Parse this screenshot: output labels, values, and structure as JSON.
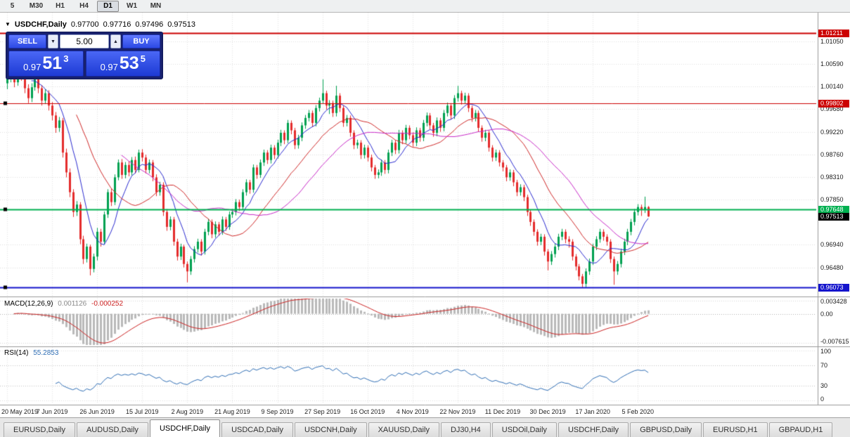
{
  "toolbar": {
    "timeframes": [
      "5",
      "M30",
      "H1",
      "H4",
      "D1",
      "W1",
      "MN"
    ],
    "active": "D1"
  },
  "chart": {
    "symbol_title": "USDCHF,Daily",
    "open": "0.97700",
    "high": "0.97716",
    "low": "0.97496",
    "close": "0.97513"
  },
  "trade": {
    "sell_label": "SELL",
    "buy_label": "BUY",
    "volume": "5.00",
    "sell_price_main": "0.97",
    "sell_price_pips": "51",
    "sell_price_frac": "3",
    "buy_price_main": "0.97",
    "buy_price_pips": "53",
    "buy_price_frac": "5"
  },
  "macd": {
    "name": "MACD(12,26,9)",
    "value": "0.001126",
    "signal_value": "-0.000252",
    "fast": 12,
    "slow": 26,
    "signal": 9,
    "ylim": [
      -0.007615,
      0.003428
    ],
    "axis_labels": [
      "0.003428",
      "0.00",
      "-0.007615"
    ],
    "hist_color": "#b9b9b9",
    "signal_color": "#cc2222"
  },
  "rsi": {
    "name": "RSI(14)",
    "value": "55.2853",
    "period": 14,
    "levels": [
      70,
      30
    ],
    "axis_labels": [
      "100",
      "70",
      "30",
      "0"
    ],
    "line_color": "#2f6eb5"
  },
  "tabs": {
    "items": [
      "EURUSD,Daily",
      "AUDUSD,Daily",
      "USDCHF,Daily",
      "USDCAD,Daily",
      "USDCNH,Daily",
      "XAUUSD,Daily",
      "DJ30,H4",
      "USDOil,Daily",
      "USDCHF,Daily",
      "GBPUSD,Daily",
      "EURUSD,H1",
      "GBPAUD,H1"
    ],
    "active_index": 2
  },
  "chart_data": {
    "type": "candlestick",
    "title": "USDCHF,Daily",
    "symbol": "USDCHF",
    "timeframe": "Daily",
    "price_scale": 10000,
    "ylim": [
      0.9595,
      1.014
    ],
    "yticks": [
      1.0105,
      1.0059,
      1.0014,
      0.9968,
      0.9922,
      0.9876,
      0.9831,
      0.9785,
      0.9694,
      0.9648
    ],
    "x_start": 10,
    "x_step": 4.93,
    "x_label_dates": [
      {
        "i": 0,
        "t": "20 May 2019"
      },
      {
        "i": 13,
        "t": "7 Jun 2019"
      },
      {
        "i": 26,
        "t": "26 Jun 2019"
      },
      {
        "i": 39,
        "t": "15 Jul 2019"
      },
      {
        "i": 52,
        "t": "2 Aug 2019"
      },
      {
        "i": 65,
        "t": "21 Aug 2019"
      },
      {
        "i": 78,
        "t": "9 Sep 2019"
      },
      {
        "i": 91,
        "t": "27 Sep 2019"
      },
      {
        "i": 104,
        "t": "16 Oct 2019"
      },
      {
        "i": 117,
        "t": "4 Nov 2019"
      },
      {
        "i": 130,
        "t": "22 Nov 2019"
      },
      {
        "i": 143,
        "t": "11 Dec 2019"
      },
      {
        "i": 156,
        "t": "30 Dec 2019"
      },
      {
        "i": 169,
        "t": "17 Jan 2020"
      },
      {
        "i": 182,
        "t": "5 Feb 2020"
      }
    ],
    "up_color": "#00a050",
    "down_color": "#e42b2b",
    "moving_averages": [
      {
        "period": 8,
        "color": "#2a2ad0"
      },
      {
        "period": 21,
        "color": "#d02828"
      },
      {
        "period": 34,
        "color": "#c828c8"
      }
    ],
    "hlines": [
      {
        "price": 1.01211,
        "label": "1.01211",
        "color": "#cc0000",
        "width": 2,
        "handles": false
      },
      {
        "price": 0.99802,
        "label": "0.99802",
        "color": "#cc0000",
        "width": 1,
        "handles": true
      },
      {
        "price": 0.97648,
        "label": "0.97648",
        "color": "#00b050",
        "width": 2,
        "handles": true
      },
      {
        "price": 0.96073,
        "label": "0.96073",
        "color": "#1414cc",
        "width": 2,
        "handles": true
      }
    ],
    "current_price": {
      "value": 0.97513,
      "label": "0.97513",
      "color": "#000000"
    },
    "candles_ohlc_pips": [
      [
        10020,
        10045,
        10008,
        10030
      ],
      [
        10030,
        10058,
        10022,
        10048
      ],
      [
        10048,
        10056,
        10012,
        10022
      ],
      [
        10022,
        10062,
        10015,
        10055
      ],
      [
        10055,
        10060,
        10025,
        10035
      ],
      [
        10035,
        10042,
        10000,
        10010
      ],
      [
        10010,
        10018,
        9980,
        9990
      ],
      [
        9990,
        10020,
        9982,
        10012
      ],
      [
        10012,
        10036,
        10005,
        10028
      ],
      [
        10028,
        10034,
        10000,
        10010
      ],
      [
        10010,
        10016,
        9975,
        9985
      ],
      [
        9985,
        10008,
        9978,
        10000
      ],
      [
        10000,
        10006,
        9965,
        9975
      ],
      [
        9975,
        9982,
        9945,
        9955
      ],
      [
        9955,
        9962,
        9920,
        9930
      ],
      [
        9930,
        9952,
        9922,
        9945
      ],
      [
        9945,
        9950,
        9870,
        9880
      ],
      [
        9880,
        9888,
        9830,
        9840
      ],
      [
        9840,
        9848,
        9790,
        9800
      ],
      [
        9800,
        9806,
        9750,
        9760
      ],
      [
        9760,
        9782,
        9752,
        9775
      ],
      [
        9775,
        9780,
        9695,
        9705
      ],
      [
        9705,
        9712,
        9655,
        9665
      ],
      [
        9665,
        9696,
        9658,
        9690
      ],
      [
        9690,
        9694,
        9632,
        9645
      ],
      [
        9645,
        9676,
        9638,
        9670
      ],
      [
        9670,
        9728,
        9662,
        9720
      ],
      [
        9720,
        9726,
        9690,
        9700
      ],
      [
        9700,
        9761,
        9694,
        9755
      ],
      [
        9755,
        9806,
        9748,
        9800
      ],
      [
        9800,
        9808,
        9772,
        9780
      ],
      [
        9780,
        9836,
        9774,
        9830
      ],
      [
        9830,
        9866,
        9824,
        9860
      ],
      [
        9860,
        9867,
        9827,
        9835
      ],
      [
        9835,
        9861,
        9828,
        9855
      ],
      [
        9855,
        9862,
        9832,
        9840
      ],
      [
        9840,
        9871,
        9834,
        9865
      ],
      [
        9865,
        9872,
        9838,
        9845
      ],
      [
        9845,
        9886,
        9840,
        9880
      ],
      [
        9880,
        9887,
        9862,
        9870
      ],
      [
        9870,
        9876,
        9838,
        9845
      ],
      [
        9845,
        9866,
        9838,
        9860
      ],
      [
        9860,
        9865,
        9822,
        9830
      ],
      [
        9830,
        9836,
        9792,
        9800
      ],
      [
        9800,
        9821,
        9793,
        9815
      ],
      [
        9815,
        9820,
        9752,
        9760
      ],
      [
        9760,
        9766,
        9722,
        9730
      ],
      [
        9730,
        9751,
        9723,
        9745
      ],
      [
        9745,
        9750,
        9692,
        9700
      ],
      [
        9700,
        9706,
        9662,
        9670
      ],
      [
        9670,
        9696,
        9663,
        9690
      ],
      [
        9690,
        9694,
        9648,
        9655
      ],
      [
        9655,
        9660,
        9618,
        9640
      ],
      [
        9640,
        9671,
        9633,
        9665
      ],
      [
        9665,
        9691,
        9658,
        9685
      ],
      [
        9685,
        9706,
        9678,
        9700
      ],
      [
        9700,
        9705,
        9672,
        9680
      ],
      [
        9680,
        9726,
        9674,
        9720
      ],
      [
        9720,
        9746,
        9713,
        9740
      ],
      [
        9740,
        9745,
        9707,
        9715
      ],
      [
        9715,
        9741,
        9708,
        9735
      ],
      [
        9735,
        9740,
        9712,
        9720
      ],
      [
        9720,
        9751,
        9714,
        9745
      ],
      [
        9745,
        9750,
        9722,
        9730
      ],
      [
        9730,
        9761,
        9724,
        9755
      ],
      [
        9755,
        9766,
        9748,
        9760
      ],
      [
        9760,
        9786,
        9753,
        9780
      ],
      [
        9780,
        9785,
        9762,
        9770
      ],
      [
        9770,
        9806,
        9764,
        9800
      ],
      [
        9800,
        9826,
        9793,
        9820
      ],
      [
        9820,
        9825,
        9797,
        9805
      ],
      [
        9805,
        9856,
        9799,
        9850
      ],
      [
        9850,
        9855,
        9827,
        9835
      ],
      [
        9835,
        9866,
        9829,
        9860
      ],
      [
        9860,
        9886,
        9853,
        9880
      ],
      [
        9880,
        9885,
        9857,
        9865
      ],
      [
        9865,
        9896,
        9858,
        9890
      ],
      [
        9890,
        9895,
        9867,
        9875
      ],
      [
        9875,
        9906,
        9868,
        9900
      ],
      [
        9900,
        9926,
        9893,
        9920
      ],
      [
        9920,
        9925,
        9897,
        9905
      ],
      [
        9905,
        9946,
        9899,
        9940
      ],
      [
        9940,
        9945,
        9917,
        9925
      ],
      [
        9925,
        9930,
        9887,
        9895
      ],
      [
        9895,
        9916,
        9888,
        9910
      ],
      [
        9910,
        9941,
        9903,
        9935
      ],
      [
        9935,
        9956,
        9928,
        9950
      ],
      [
        9950,
        9966,
        9943,
        9960
      ],
      [
        9960,
        9965,
        9932,
        9940
      ],
      [
        9940,
        9976,
        9933,
        9970
      ],
      [
        9970,
        9991,
        9963,
        9985
      ],
      [
        9985,
        10028,
        9978,
        10000
      ],
      [
        10000,
        10005,
        9967,
        9975
      ],
      [
        9975,
        9986,
        9958,
        9980
      ],
      [
        9980,
        9985,
        9952,
        9960
      ],
      [
        9960,
        10015,
        9953,
        9995
      ],
      [
        9995,
        10000,
        9962,
        9970
      ],
      [
        9970,
        9975,
        9932,
        9940
      ],
      [
        9940,
        9956,
        9933,
        9950
      ],
      [
        9950,
        9955,
        9912,
        9920
      ],
      [
        9920,
        9925,
        9887,
        9895
      ],
      [
        9895,
        9906,
        9888,
        9900
      ],
      [
        9900,
        9905,
        9867,
        9875
      ],
      [
        9875,
        9896,
        9868,
        9890
      ],
      [
        9890,
        9895,
        9862,
        9870
      ],
      [
        9870,
        9876,
        9842,
        9850
      ],
      [
        9850,
        9855,
        9827,
        9835
      ],
      [
        9835,
        9846,
        9828,
        9840
      ],
      [
        9840,
        9866,
        9833,
        9860
      ],
      [
        9860,
        9865,
        9837,
        9845
      ],
      [
        9845,
        9886,
        9838,
        9880
      ],
      [
        9880,
        9906,
        9873,
        9900
      ],
      [
        9900,
        9905,
        9877,
        9885
      ],
      [
        9885,
        9926,
        9878,
        9920
      ],
      [
        9920,
        9925,
        9897,
        9905
      ],
      [
        9905,
        9936,
        9898,
        9930
      ],
      [
        9930,
        9935,
        9907,
        9915
      ],
      [
        9915,
        9921,
        9892,
        9900
      ],
      [
        9900,
        9931,
        9893,
        9925
      ],
      [
        9925,
        9930,
        9902,
        9910
      ],
      [
        9910,
        9946,
        9903,
        9940
      ],
      [
        9940,
        9961,
        9933,
        9955
      ],
      [
        9955,
        9960,
        9927,
        9935
      ],
      [
        9935,
        9940,
        9912,
        9920
      ],
      [
        9920,
        9951,
        9913,
        9945
      ],
      [
        9945,
        9950,
        9922,
        9930
      ],
      [
        9930,
        9966,
        9923,
        9960
      ],
      [
        9960,
        9981,
        9953,
        9975
      ],
      [
        9975,
        9980,
        9947,
        9955
      ],
      [
        9955,
        9996,
        9948,
        9990
      ],
      [
        9990,
        10015,
        9983,
        10000
      ],
      [
        10000,
        10005,
        9977,
        9985
      ],
      [
        9985,
        10001,
        9978,
        9995
      ],
      [
        9995,
        10000,
        9962,
        9970
      ],
      [
        9970,
        9975,
        9942,
        9950
      ],
      [
        9950,
        9966,
        9943,
        9960
      ],
      [
        9960,
        9965,
        9922,
        9930
      ],
      [
        9930,
        9935,
        9902,
        9910
      ],
      [
        9910,
        9926,
        9903,
        9920
      ],
      [
        9920,
        9925,
        9882,
        9890
      ],
      [
        9890,
        9895,
        9862,
        9870
      ],
      [
        9870,
        9886,
        9863,
        9880
      ],
      [
        9880,
        9885,
        9852,
        9860
      ],
      [
        9860,
        9865,
        9842,
        9850
      ],
      [
        9850,
        9855,
        9822,
        9830
      ],
      [
        9830,
        9846,
        9823,
        9840
      ],
      [
        9840,
        9845,
        9812,
        9820
      ],
      [
        9820,
        9825,
        9792,
        9800
      ],
      [
        9800,
        9816,
        9793,
        9810
      ],
      [
        9810,
        9815,
        9782,
        9790
      ],
      [
        9790,
        9795,
        9752,
        9760
      ],
      [
        9760,
        9765,
        9732,
        9740
      ],
      [
        9740,
        9745,
        9712,
        9720
      ],
      [
        9720,
        9725,
        9692,
        9700
      ],
      [
        9700,
        9716,
        9693,
        9710
      ],
      [
        9710,
        9715,
        9672,
        9680
      ],
      [
        9680,
        9685,
        9642,
        9660
      ],
      [
        9660,
        9681,
        9653,
        9675
      ],
      [
        9675,
        9696,
        9668,
        9690
      ],
      [
        9690,
        9716,
        9683,
        9710
      ],
      [
        9710,
        9726,
        9703,
        9720
      ],
      [
        9720,
        9725,
        9697,
        9705
      ],
      [
        9705,
        9711,
        9688,
        9700
      ],
      [
        9700,
        9705,
        9662,
        9670
      ],
      [
        9670,
        9675,
        9642,
        9650
      ],
      [
        9650,
        9655,
        9622,
        9630
      ],
      [
        9630,
        9635,
        9608,
        9615
      ],
      [
        9615,
        9646,
        9608,
        9640
      ],
      [
        9640,
        9666,
        9633,
        9660
      ],
      [
        9660,
        9696,
        9653,
        9690
      ],
      [
        9690,
        9711,
        9683,
        9705
      ],
      [
        9705,
        9726,
        9698,
        9720
      ],
      [
        9720,
        9725,
        9702,
        9710
      ],
      [
        9710,
        9715,
        9692,
        9700
      ],
      [
        9700,
        9705,
        9657,
        9665
      ],
      [
        9665,
        9670,
        9613,
        9640
      ],
      [
        9640,
        9661,
        9633,
        9655
      ],
      [
        9655,
        9686,
        9648,
        9680
      ],
      [
        9680,
        9706,
        9673,
        9700
      ],
      [
        9700,
        9726,
        9693,
        9720
      ],
      [
        9720,
        9746,
        9713,
        9740
      ],
      [
        9740,
        9766,
        9733,
        9760
      ],
      [
        9760,
        9776,
        9753,
        9770
      ],
      [
        9770,
        9775,
        9752,
        9765
      ],
      [
        9765,
        9791,
        9758,
        9770
      ],
      [
        9770,
        9772,
        9750,
        9751
      ]
    ]
  }
}
